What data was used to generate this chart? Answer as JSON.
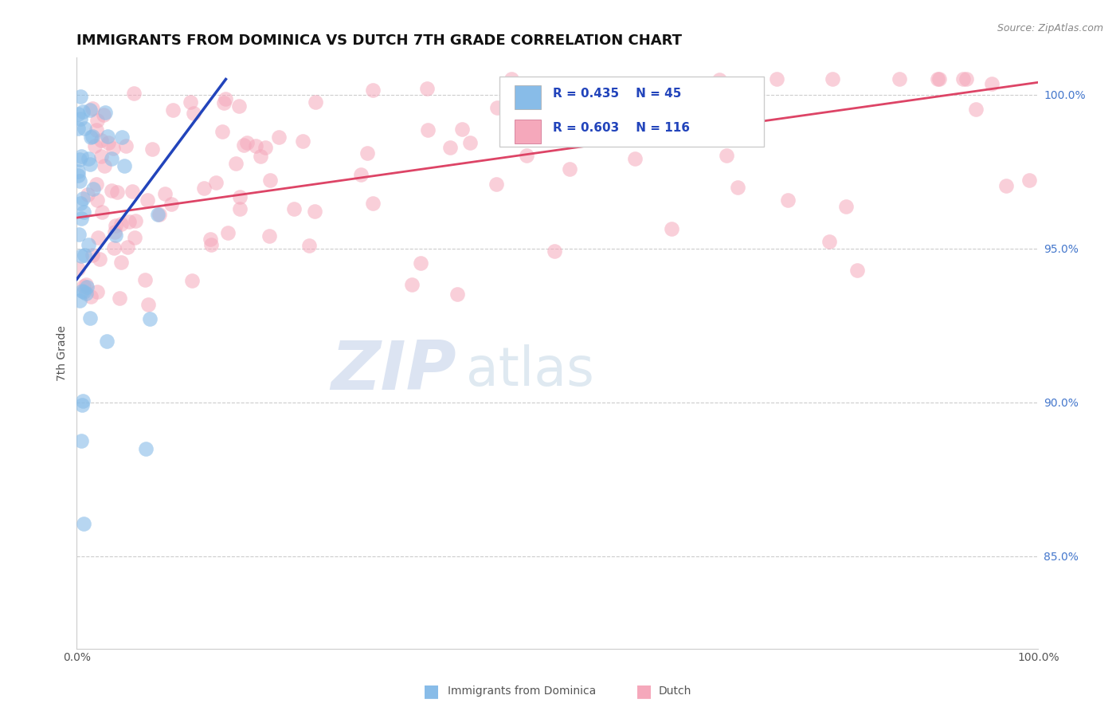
{
  "title": "IMMIGRANTS FROM DOMINICA VS DUTCH 7TH GRADE CORRELATION CHART",
  "source": "Source: ZipAtlas.com",
  "ylabel": "7th Grade",
  "xlim": [
    0.0,
    1.0
  ],
  "ylim": [
    0.82,
    1.012
  ],
  "right_yticks": [
    0.85,
    0.9,
    0.95,
    1.0
  ],
  "right_yticklabels": [
    "85.0%",
    "90.0%",
    "95.0%",
    "100.0%"
  ],
  "xtick_positions": [
    0.0,
    1.0
  ],
  "xticklabels": [
    "0.0%",
    "100.0%"
  ],
  "dominica_R": 0.435,
  "dominica_N": 45,
  "dutch_R": 0.603,
  "dutch_N": 116,
  "dominica_color": "#88bce8",
  "dutch_color": "#f5a8bb",
  "dominica_line_color": "#2244bb",
  "dutch_line_color": "#dd4466",
  "dominica_trend": [
    0.0,
    0.155,
    0.94,
    1.005
  ],
  "dutch_trend": [
    0.0,
    1.0,
    0.96,
    1.004
  ],
  "watermark_zip": "ZIP",
  "watermark_atlas": "atlas",
  "watermark_color_zip": "#c0cfe8",
  "watermark_color_atlas": "#b8cfe0",
  "background_color": "#ffffff",
  "grid_color": "#cccccc",
  "title_fontsize": 13,
  "axis_label_fontsize": 10,
  "tick_fontsize": 10,
  "legend_fontsize": 11,
  "bottom_legend_items": [
    {
      "label": "Immigrants from Dominica",
      "color": "#88bce8"
    },
    {
      "label": "Dutch",
      "color": "#f5a8bb"
    }
  ]
}
